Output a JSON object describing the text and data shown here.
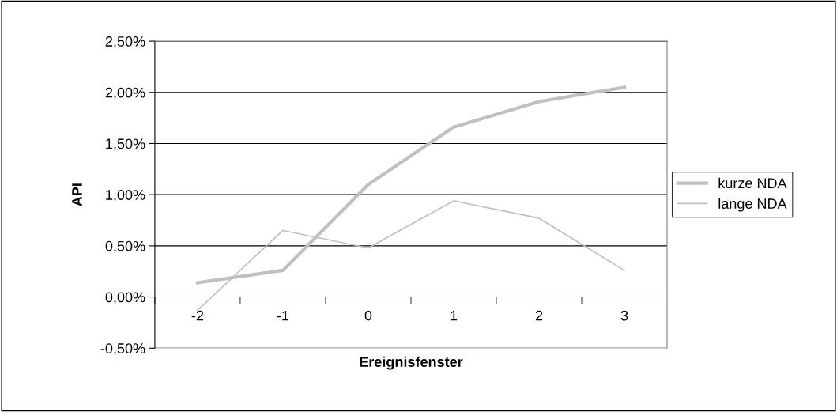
{
  "chart_data": {
    "type": "line",
    "xlabel": "Ereignisfenster",
    "ylabel": "API",
    "categories": [
      "-2",
      "-1",
      "0",
      "1",
      "2",
      "3"
    ],
    "series": [
      {
        "name": "kurze NDA",
        "color": "#c0c0c0",
        "values": [
          0.14,
          0.26,
          1.1,
          1.66,
          1.91,
          2.05
        ]
      },
      {
        "name": "lange NDA",
        "color": "#c0c0c0",
        "values": [
          -0.13,
          0.65,
          0.48,
          0.94,
          0.77,
          0.26
        ]
      }
    ],
    "ylim": [
      -0.5,
      2.5
    ],
    "yticks": [
      {
        "value": -0.5,
        "label": "-0,50%"
      },
      {
        "value": 0,
        "label": "0,00%"
      },
      {
        "value": 0.5,
        "label": "0,50%"
      },
      {
        "value": 1,
        "label": "1,00%"
      },
      {
        "value": 1.5,
        "label": "1,50%"
      },
      {
        "value": 2,
        "label": "2,00%"
      },
      {
        "value": 2.5,
        "label": "2,50%"
      }
    ],
    "grid": "y",
    "legend": "right",
    "marker": "none",
    "line_style": "solid"
  }
}
